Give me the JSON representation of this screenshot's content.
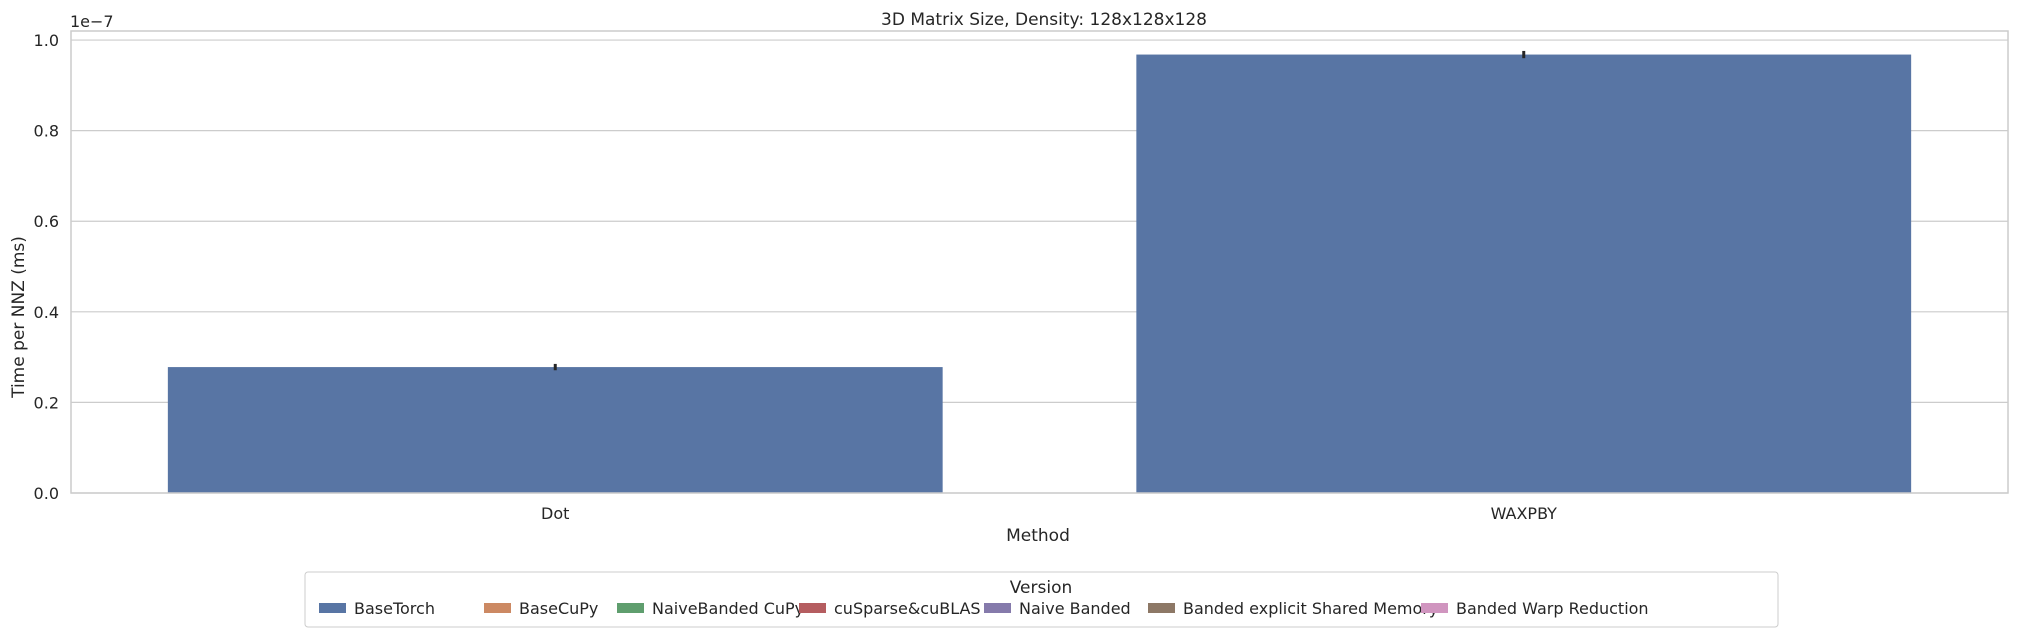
{
  "chart_data": {
    "type": "bar",
    "title": "3D Matrix Size, Density: 128x128x128",
    "xlabel": "Method",
    "ylabel": "Time per NNZ (ms)",
    "y_offset_label": "1e−7",
    "categories": [
      "Dot",
      "WAXPBY"
    ],
    "ylim": [
      0,
      1.02e-07
    ],
    "yticks": [
      0,
      2e-08,
      4e-08,
      6e-08,
      8e-08,
      1e-07
    ],
    "ytick_labels": [
      "0.0",
      "0.2",
      "0.4",
      "0.6",
      "0.8",
      "1.0"
    ],
    "grid": "horizontal",
    "series": [
      {
        "name": "BaseTorch",
        "color": "#5875a4",
        "values": [
          2.78e-08,
          9.68e-08
        ],
        "err": [
          7e-10,
          8e-10
        ]
      },
      {
        "name": "BaseCuPy",
        "color": "#cc8963",
        "values": [
          null,
          null
        ]
      },
      {
        "name": "NaiveBanded CuPy",
        "color": "#5f9e6e",
        "values": [
          null,
          null
        ]
      },
      {
        "name": "cuSparse&cuBLAS",
        "color": "#b55d60",
        "values": [
          null,
          null
        ]
      },
      {
        "name": "Naive Banded",
        "color": "#857aab",
        "values": [
          null,
          null
        ]
      },
      {
        "name": "Banded explicit Shared Memory",
        "color": "#8d7866",
        "values": [
          null,
          null
        ]
      },
      {
        "name": "Banded Warp Reduction",
        "color": "#d095bf",
        "values": [
          null,
          null
        ]
      }
    ],
    "legend": {
      "title": "Version",
      "placement": "bottom-center"
    }
  }
}
